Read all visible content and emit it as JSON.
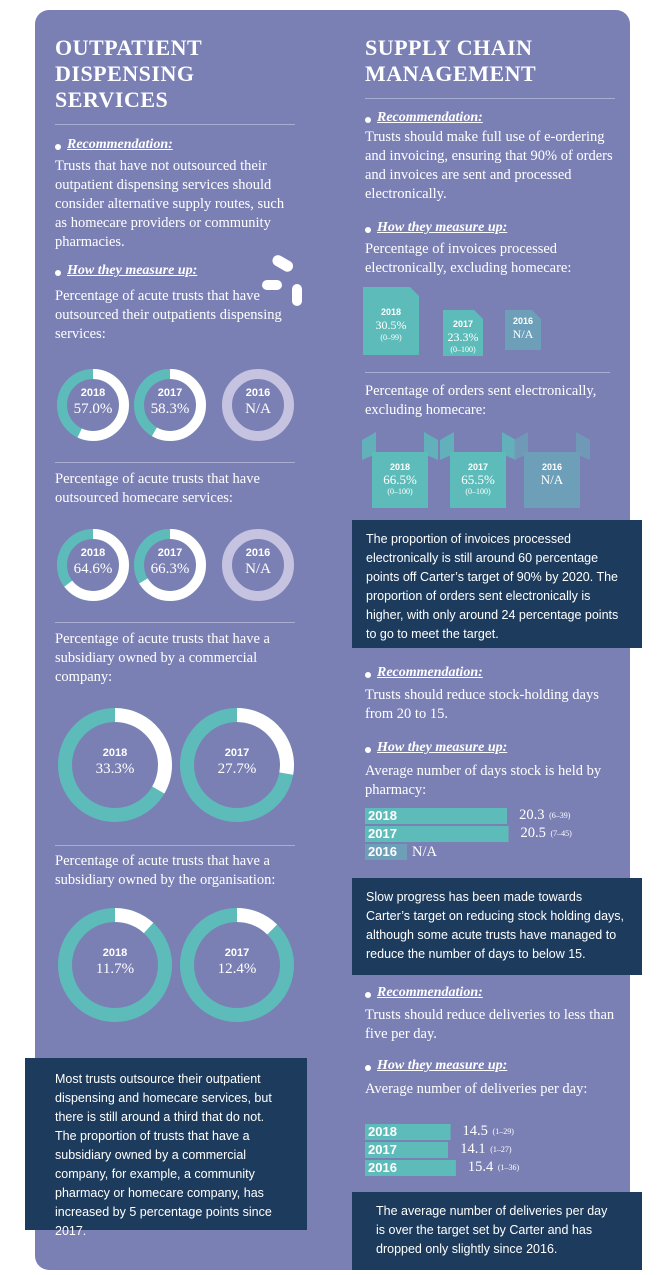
{
  "left": {
    "title": "OUTPATIENT DISPENSING SERVICES",
    "recommendation_label": "Recommendation:",
    "recommendation": "Trusts that have not outsourced their outpatient dispensing services should consider alternative supply routes, such as homecare providers or community pharmacies.",
    "measure_label": "How they measure up:",
    "metrics": [
      {
        "label": "Percentage of acute trusts that have outsourced their outpatients dispensing services:",
        "items": [
          {
            "year": "2018",
            "value": 57.0,
            "label": "57.0%"
          },
          {
            "year": "2017",
            "value": 58.3,
            "label": "58.3%"
          },
          {
            "year": "2016",
            "label": "N/A"
          }
        ]
      },
      {
        "label": "Percentage of acute trusts that have outsourced homecare services:",
        "items": [
          {
            "year": "2018",
            "value": 64.6,
            "label": "64.6%"
          },
          {
            "year": "2017",
            "value": 66.3,
            "label": "66.3%"
          },
          {
            "year": "2016",
            "label": "N/A"
          }
        ]
      },
      {
        "label": "Percentage of acute trusts that have a subsidiary owned by a commercial company:",
        "items": [
          {
            "year": "2018",
            "value": 33.3,
            "label": "33.3%"
          },
          {
            "year": "2017",
            "value": 27.7,
            "label": "27.7%"
          }
        ]
      },
      {
        "label": "Percentage of acute trusts that have a subsidiary owned by the organisation:",
        "items": [
          {
            "year": "2018",
            "value": 11.7,
            "label": "11.7%"
          },
          {
            "year": "2017",
            "value": 12.4,
            "label": "12.4%"
          }
        ]
      }
    ],
    "note": "Most trusts outsource their outpatient dispensing and homecare services, but there is still around a third that do not. The proportion of trusts that have a subsidiary owned by a commercial company, for example, a community pharmacy or homecare company, has increased by 5 percentage points since 2017."
  },
  "right": {
    "title": "SUPPLY CHAIN MANAGEMENT",
    "sections": [
      {
        "recommendation_label": "Recommendation:",
        "recommendation": "Trusts should make full use of e-ordering and invoicing, ensuring that 90% of orders and invoices are sent and processed electronically.",
        "measure_label": "How they measure up:"
      },
      {
        "recommendation_label": "Recommendation:",
        "recommendation": "Trusts should reduce stock-holding days from 20 to 15.",
        "measure_label": "How they measure up:"
      },
      {
        "recommendation_label": "Recommendation:",
        "recommendation": "Trusts should reduce deliveries to less than five per day.",
        "measure_label": "How they measure up:"
      }
    ],
    "invoices": {
      "label": "Percentage of invoices processed electronically, excluding homecare:",
      "items": [
        {
          "year": "2018",
          "value": 30.5,
          "label": "30.5%",
          "range": "(0–99)"
        },
        {
          "year": "2017",
          "value": 23.3,
          "label": "23.3%",
          "range": "(0–100)"
        },
        {
          "year": "2016",
          "label": "N/A"
        }
      ]
    },
    "orders": {
      "label": "Percentage of orders sent electronically, excluding homecare:",
      "items": [
        {
          "year": "2018",
          "value": 66.5,
          "label": "66.5%",
          "range": "(0–100)"
        },
        {
          "year": "2017",
          "value": 65.5,
          "label": "65.5%",
          "range": "(0–100)"
        },
        {
          "year": "2016",
          "label": "N/A"
        }
      ]
    },
    "note1": "The proportion of invoices processed electronically is still around 60 percentage points off Carter’s target of 90% by 2020. The proportion of orders sent electronically is higher, with only around 24 percentage points to go to meet the target.",
    "stock": {
      "label": "Average number of days stock is held by pharmacy:",
      "items": [
        {
          "year": "2018",
          "value": 20.3,
          "range": "(6–39)"
        },
        {
          "year": "2017",
          "value": 20.5,
          "range": "(7–45)"
        },
        {
          "year": "2016",
          "label": "N/A"
        }
      ]
    },
    "note2": "Slow progress has been made towards Carter’s target on reducing stock holding days, although some acute trusts have managed to reduce the number of days to below 15.",
    "deliveries": {
      "label": "Average number of deliveries per day:",
      "items": [
        {
          "year": "2018",
          "value": 14.5,
          "range": "(1–29)"
        },
        {
          "year": "2017",
          "value": 14.1,
          "range": "(1–27)"
        },
        {
          "year": "2016",
          "value": 15.4,
          "range": "(1–36)"
        }
      ]
    },
    "note3": "The average number of deliveries per day is over the target set by Carter and has dropped only slightly since 2016."
  }
}
